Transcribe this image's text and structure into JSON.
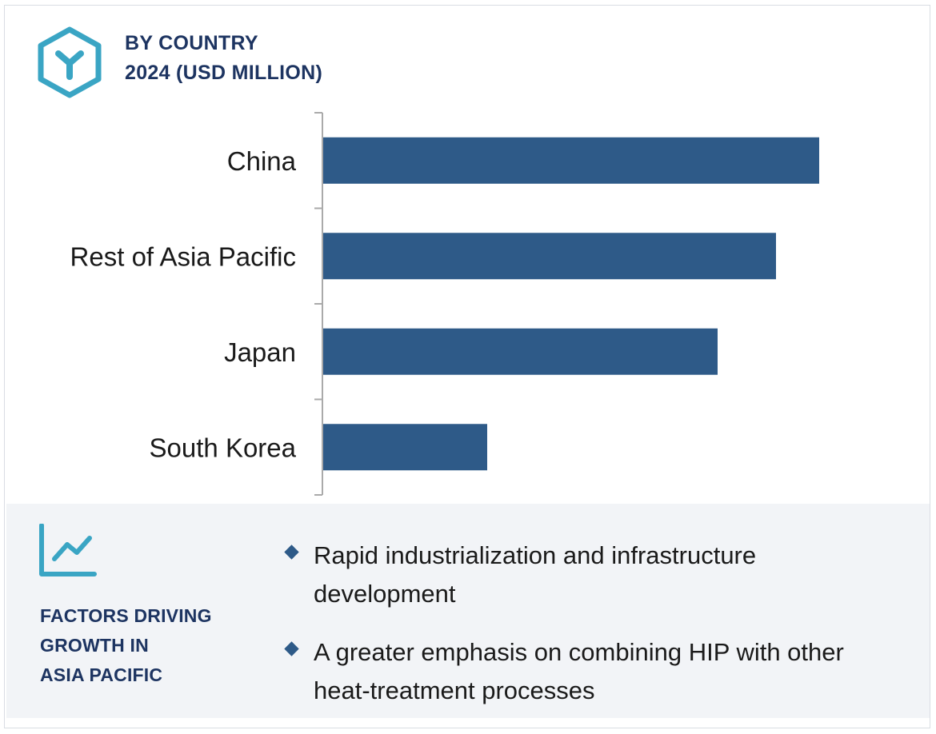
{
  "header": {
    "title_line1": "BY COUNTRY",
    "title_line2": "2024 (USD MILLION)",
    "icon": "hexagon-y-icon"
  },
  "chart_data": {
    "type": "bar",
    "orientation": "horizontal",
    "title": "BY COUNTRY 2024 (USD MILLION)",
    "categories": [
      "China",
      "Rest of Asia Pacific",
      "Japan",
      "South Korea"
    ],
    "values": [
      620,
      566,
      493,
      205
    ],
    "xlabel": "",
    "ylabel": "",
    "xlim": [
      0,
      700
    ],
    "grid": false,
    "legend": "none",
    "bar_color": "#2e5a88"
  },
  "factors": {
    "icon": "line-chart-icon",
    "title_line1": "FACTORS DRIVING",
    "title_line2": "GROWTH IN",
    "title_line3": "ASIA PACIFIC",
    "bullets": [
      "Rapid industrialization and infrastructure development",
      "A greater emphasis on combining HIP with other heat-treatment processes"
    ]
  },
  "colors": {
    "accent_teal": "#3aa5c4",
    "navy_text": "#1d3461",
    "bar": "#2e5a88",
    "panel_bg": "#f2f4f7"
  }
}
